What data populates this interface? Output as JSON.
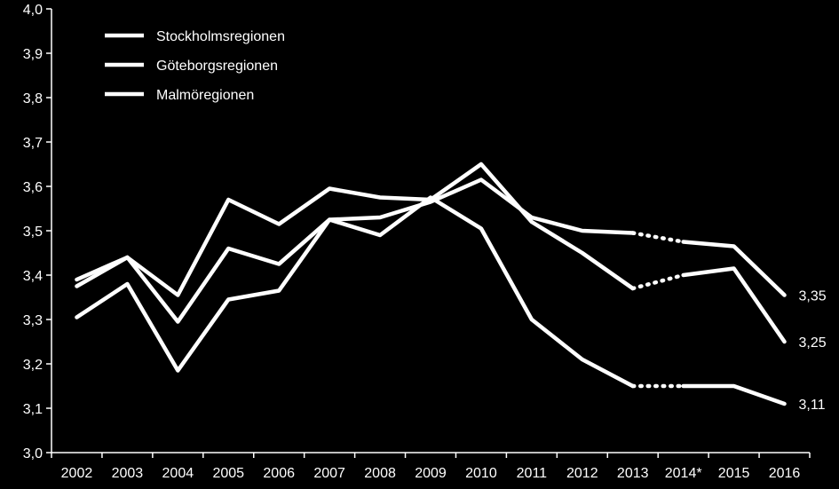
{
  "chart_data": {
    "type": "line",
    "title": "",
    "xlabel": "",
    "ylabel": "",
    "categories": [
      "2002",
      "2003",
      "2004",
      "2005",
      "2006",
      "2007",
      "2008",
      "2009",
      "2010",
      "2011",
      "2012",
      "2013",
      "2014*",
      "2015",
      "2016"
    ],
    "ylim": [
      3.0,
      4.0
    ],
    "yticks": [
      3.0,
      3.1,
      3.2,
      3.3,
      3.4,
      3.5,
      3.6,
      3.7,
      3.8,
      3.9,
      4.0
    ],
    "ytick_labels": [
      "3,0",
      "3,1",
      "3,2",
      "3,3",
      "3,4",
      "3,5",
      "3,6",
      "3,7",
      "3,8",
      "3,9",
      "4,0"
    ],
    "grid": false,
    "legend_position": "top-left",
    "line_color": "#ffffff",
    "background": "#000000",
    "dotted_segment": [
      "2013",
      "2014*"
    ],
    "series": [
      {
        "name": "Stockholmsregionen",
        "values": [
          3.39,
          3.44,
          3.355,
          3.57,
          3.515,
          3.595,
          3.575,
          3.57,
          3.65,
          3.52,
          3.45,
          3.37,
          3.4,
          3.415,
          3.25
        ],
        "end_label": "3,25"
      },
      {
        "name": "Göteborgsregionen",
        "values": [
          3.375,
          3.44,
          3.295,
          3.46,
          3.425,
          3.525,
          3.53,
          3.565,
          3.615,
          3.53,
          3.5,
          3.495,
          3.475,
          3.465,
          3.355
        ],
        "end_label": "3,35"
      },
      {
        "name": "Malmöregionen",
        "values": [
          3.305,
          3.38,
          3.185,
          3.345,
          3.365,
          3.525,
          3.49,
          3.575,
          3.505,
          3.3,
          3.21,
          3.15,
          3.15,
          3.15,
          3.11
        ],
        "end_label": "3,11"
      }
    ]
  }
}
